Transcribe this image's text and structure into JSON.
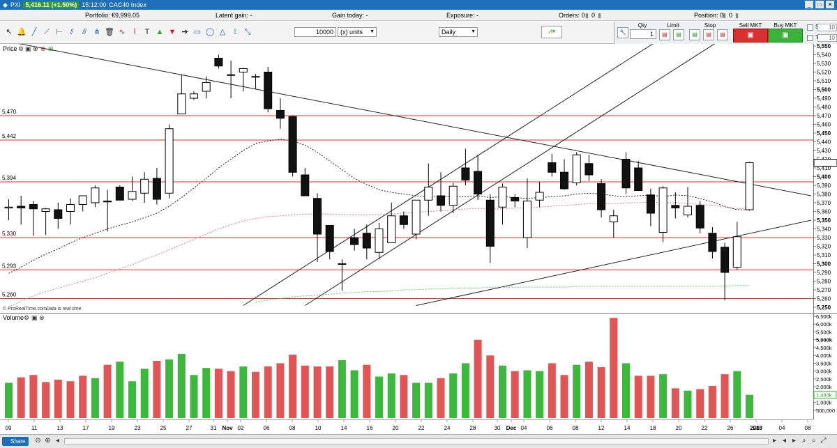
{
  "window": {
    "price_badge": "5,416.11 (+1.50%)",
    "time": "15:12:00",
    "instrument": "CAC40 Index",
    "symbol_prefix": "PXI"
  },
  "portfolio_bar": {
    "portfolio": "Portfolio: €9,999.05",
    "latent_gain": "Latent gain: -",
    "gain_today": "Gain today: -",
    "exposure": "Exposure: -",
    "orders": "Orders: 0",
    "orders2": "0",
    "position": "Position: 0",
    "position2": "0"
  },
  "toolbar": {
    "quantity": "10000",
    "units": "(x) units",
    "period": "Daily"
  },
  "order_panel": {
    "qty_label": "Qty",
    "qty_value": "1",
    "limit_label": "Limit",
    "stop_label": "Stop",
    "sell_label": "Sell MKT",
    "buy_label": "Buy MKT",
    "s_label": "S",
    "t_label": "T",
    "s_value": "10",
    "t_value": "10"
  },
  "panels": {
    "price_title": "Price",
    "volume_title": "Volume",
    "credit": "© ProRealTime.com",
    "credit2": "Data is real time"
  },
  "colors": {
    "up_volume": "#3cb83c",
    "down_volume": "#e05555",
    "hline": "#e03030",
    "bg": "#ffffff"
  },
  "chart_data": [
    {
      "type": "candlestick",
      "title": "CAC40 Index",
      "timeframe": "Daily",
      "ylim": [
        5250,
        5550
      ],
      "y_ticks": [
        "5,250",
        "5,260",
        "5,270",
        "5,280",
        "5,290",
        "5,300",
        "5,310",
        "5,320",
        "5,330",
        "5,340",
        "5,350",
        "5,360",
        "5,370",
        "5,380",
        "5,390",
        "5,400",
        "5,410",
        "5,420",
        "5,430",
        "5,440",
        "5,450",
        "5,460",
        "5,470",
        "5,480",
        "5,490",
        "5,500",
        "5,510",
        "5,520",
        "5,530",
        "5,540",
        "5,550"
      ],
      "horizontal_levels": [
        {
          "label": "5,470",
          "value": 5470
        },
        {
          "label": "5,442",
          "value": 5442
        },
        {
          "label": "5,394",
          "value": 5394
        },
        {
          "label": "5,330",
          "value": 5330
        },
        {
          "label": "5,293",
          "value": 5293
        },
        {
          "label": "5,260",
          "value": 5260
        }
      ],
      "x_labels": [
        "09",
        "11",
        "13",
        "17",
        "19",
        "23",
        "25",
        "27",
        "31",
        "Nov",
        "02",
        "06",
        "08",
        "10",
        "14",
        "16",
        "20",
        "22",
        "24",
        "28",
        "30",
        "Dec",
        "04",
        "06",
        "08",
        "12",
        "14",
        "18",
        "20",
        "22",
        "26",
        "28",
        "2018",
        "04",
        "08"
      ],
      "candles": [
        {
          "o": 5364,
          "h": 5374,
          "l": 5350,
          "c": 5365
        },
        {
          "o": 5366,
          "h": 5378,
          "l": 5345,
          "c": 5364
        },
        {
          "o": 5368,
          "h": 5372,
          "l": 5332,
          "c": 5363
        },
        {
          "o": 5360,
          "h": 5364,
          "l": 5333,
          "c": 5363
        },
        {
          "o": 5362,
          "h": 5370,
          "l": 5340,
          "c": 5352
        },
        {
          "o": 5360,
          "h": 5375,
          "l": 5345,
          "c": 5368
        },
        {
          "o": 5368,
          "h": 5376,
          "l": 5360,
          "c": 5378
        },
        {
          "o": 5370,
          "h": 5390,
          "l": 5365,
          "c": 5387
        },
        {
          "o": 5372,
          "h": 5385,
          "l": 5337,
          "c": 5371
        },
        {
          "o": 5388,
          "h": 5390,
          "l": 5375,
          "c": 5373
        },
        {
          "o": 5374,
          "h": 5400,
          "l": 5372,
          "c": 5383
        },
        {
          "o": 5381,
          "h": 5405,
          "l": 5370,
          "c": 5397
        },
        {
          "o": 5398,
          "h": 5410,
          "l": 5368,
          "c": 5374
        },
        {
          "o": 5381,
          "h": 5460,
          "l": 5375,
          "c": 5455
        },
        {
          "o": 5472,
          "h": 5517,
          "l": 5472,
          "c": 5495
        },
        {
          "o": 5490,
          "h": 5498,
          "l": 5488,
          "c": 5495
        },
        {
          "o": 5498,
          "h": 5515,
          "l": 5490,
          "c": 5508
        },
        {
          "o": 5536,
          "h": 5540,
          "l": 5524,
          "c": 5527
        },
        {
          "o": 5517,
          "h": 5533,
          "l": 5490,
          "c": 5517
        },
        {
          "o": 5520,
          "h": 5525,
          "l": 5498,
          "c": 5524
        },
        {
          "o": 5515,
          "h": 5518,
          "l": 5500,
          "c": 5515
        },
        {
          "o": 5520,
          "h": 5526,
          "l": 5474,
          "c": 5478
        },
        {
          "o": 5476,
          "h": 5490,
          "l": 5455,
          "c": 5467
        },
        {
          "o": 5469,
          "h": 5470,
          "l": 5400,
          "c": 5405
        },
        {
          "o": 5402,
          "h": 5410,
          "l": 5380,
          "c": 5378
        },
        {
          "o": 5375,
          "h": 5381,
          "l": 5302,
          "c": 5334
        },
        {
          "o": 5344,
          "h": 5344,
          "l": 5305,
          "c": 5314
        },
        {
          "o": 5300,
          "h": 5305,
          "l": 5269,
          "c": 5300
        },
        {
          "o": 5330,
          "h": 5340,
          "l": 5315,
          "c": 5322
        },
        {
          "o": 5335,
          "h": 5345,
          "l": 5305,
          "c": 5318
        },
        {
          "o": 5313,
          "h": 5347,
          "l": 5305,
          "c": 5340
        },
        {
          "o": 5324,
          "h": 5370,
          "l": 5324,
          "c": 5355
        },
        {
          "o": 5355,
          "h": 5360,
          "l": 5340,
          "c": 5345
        },
        {
          "o": 5334,
          "h": 5370,
          "l": 5328,
          "c": 5373
        },
        {
          "o": 5373,
          "h": 5415,
          "l": 5355,
          "c": 5388
        },
        {
          "o": 5378,
          "h": 5405,
          "l": 5360,
          "c": 5367
        },
        {
          "o": 5367,
          "h": 5393,
          "l": 5358,
          "c": 5389
        },
        {
          "o": 5410,
          "h": 5432,
          "l": 5390,
          "c": 5396
        },
        {
          "o": 5406,
          "h": 5425,
          "l": 5373,
          "c": 5380
        },
        {
          "o": 5373,
          "h": 5380,
          "l": 5301,
          "c": 5320
        },
        {
          "o": 5365,
          "h": 5392,
          "l": 5345,
          "c": 5388
        },
        {
          "o": 5376,
          "h": 5380,
          "l": 5365,
          "c": 5372
        },
        {
          "o": 5330,
          "h": 5398,
          "l": 5318,
          "c": 5372
        },
        {
          "o": 5373,
          "h": 5394,
          "l": 5365,
          "c": 5382
        },
        {
          "o": 5416,
          "h": 5426,
          "l": 5400,
          "c": 5405
        },
        {
          "o": 5405,
          "h": 5420,
          "l": 5385,
          "c": 5386
        },
        {
          "o": 5393,
          "h": 5428,
          "l": 5390,
          "c": 5425
        },
        {
          "o": 5415,
          "h": 5425,
          "l": 5395,
          "c": 5402
        },
        {
          "o": 5392,
          "h": 5397,
          "l": 5353,
          "c": 5362
        },
        {
          "o": 5348,
          "h": 5362,
          "l": 5330,
          "c": 5355
        },
        {
          "o": 5420,
          "h": 5428,
          "l": 5380,
          "c": 5387
        },
        {
          "o": 5410,
          "h": 5418,
          "l": 5386,
          "c": 5384
        },
        {
          "o": 5379,
          "h": 5386,
          "l": 5343,
          "c": 5358
        },
        {
          "o": 5336,
          "h": 5389,
          "l": 5325,
          "c": 5387
        },
        {
          "o": 5367,
          "h": 5382,
          "l": 5352,
          "c": 5364
        },
        {
          "o": 5356,
          "h": 5388,
          "l": 5353,
          "c": 5366
        },
        {
          "o": 5367,
          "h": 5372,
          "l": 5335,
          "c": 5341
        },
        {
          "o": 5335,
          "h": 5342,
          "l": 5306,
          "c": 5314
        },
        {
          "o": 5319,
          "h": 5324,
          "l": 5258,
          "c": 5290
        },
        {
          "o": 5296,
          "h": 5348,
          "l": 5293,
          "c": 5331
        },
        {
          "o": 5362,
          "h": 5417,
          "l": 5361,
          "c": 5416
        }
      ],
      "moving_averages": [
        {
          "name": "MA20",
          "color": "#222222",
          "values": [
            5289,
            5296,
            5304,
            5311,
            5317,
            5324,
            5330,
            5335,
            5340,
            5344,
            5348,
            5353,
            5358,
            5366,
            5376,
            5387,
            5398,
            5410,
            5420,
            5430,
            5438,
            5441,
            5443,
            5441,
            5436,
            5428,
            5418,
            5408,
            5398,
            5391,
            5385,
            5382,
            5380,
            5378,
            5377,
            5377,
            5377,
            5377,
            5378,
            5376,
            5377,
            5376,
            5375,
            5376,
            5377,
            5378,
            5380,
            5381,
            5380,
            5378,
            5377,
            5378,
            5379,
            5377,
            5379,
            5378,
            5375,
            5371,
            5366,
            5362,
            5362
          ]
        },
        {
          "name": "MA50",
          "color": "#e07a7a",
          "values": [
            5250,
            5257,
            5263,
            5268,
            5272,
            5276,
            5280,
            5284,
            5289,
            5294,
            5299,
            5305,
            5310,
            5316,
            5322,
            5328,
            5334,
            5340,
            5345,
            5349,
            5352,
            5354,
            5355,
            5356,
            5357,
            5357,
            5357,
            5356,
            5356,
            5356,
            5356,
            5357,
            5358,
            5359,
            5360,
            5361,
            5362,
            5363,
            5363,
            5363,
            5363,
            5364,
            5364,
            5365,
            5366,
            5367,
            5368,
            5369,
            5369,
            5369,
            5370,
            5370,
            5371,
            5370,
            5370,
            5369,
            5368,
            5367,
            5365,
            5363,
            5364
          ]
        },
        {
          "name": "MA200",
          "color": "#5ccb5c",
          "values": [
            null,
            null,
            null,
            null,
            null,
            null,
            null,
            null,
            null,
            null,
            null,
            null,
            null,
            null,
            null,
            null,
            null,
            null,
            null,
            null,
            5256,
            5258,
            5260,
            5262,
            5263,
            5264,
            5265,
            5266,
            5267,
            5268,
            5268,
            5269,
            5270,
            5270,
            5271,
            5271,
            5272,
            5272,
            5272,
            5273,
            5273,
            5273,
            5273,
            5273,
            5273,
            5273,
            5274,
            5274,
            5274,
            5274,
            5274,
            5274,
            5274,
            5274,
            5274,
            5274,
            5274,
            5274,
            5274,
            5275,
            5275
          ]
        }
      ],
      "trend_lines": [
        {
          "points": [
            [
              0,
              5555
            ],
            [
              65,
              5378
            ]
          ]
        },
        {
          "points": [
            [
              19,
              5252
            ],
            [
              53,
              5560
            ]
          ]
        },
        {
          "points": [
            [
              24,
              5252
            ],
            [
              58,
              5560
            ]
          ]
        },
        {
          "points": [
            [
              33,
              5252
            ],
            [
              65,
              5350
            ]
          ]
        }
      ]
    },
    {
      "type": "bar",
      "title": "Volume",
      "ylim": [
        0,
        6500000
      ],
      "y_ticks": [
        "500,000",
        "1,000k",
        "1,500k",
        "2,000k",
        "2,500k",
        "3,000k",
        "3,500k",
        "4,000k",
        "4,500k",
        "5,000k",
        "5,500k",
        "6,000k",
        "6,500k"
      ],
      "last_value_label": "1,483k",
      "values": [
        2250000,
        2600000,
        2750000,
        2300000,
        2450000,
        2350000,
        2700000,
        2550000,
        3400000,
        3600000,
        2350000,
        3150000,
        3650000,
        3750000,
        4100000,
        2750000,
        3200000,
        3150000,
        3000000,
        3300000,
        2950000,
        3300000,
        3500000,
        4050000,
        3350000,
        3300000,
        3300000,
        3700000,
        3050000,
        3400000,
        2650000,
        2850000,
        2750000,
        2250000,
        2250000,
        2550000,
        2850000,
        3500000,
        5000000,
        4000000,
        3350000,
        3000000,
        3050000,
        3000000,
        3500000,
        2750000,
        3400000,
        3600000,
        3250000,
        6400000,
        3500000,
        2700000,
        2700000,
        2800000,
        1900000,
        1750000,
        1850000,
        2050000,
        2800000,
        3000000,
        1483000
      ],
      "up": [
        1,
        0,
        0,
        0,
        0,
        0,
        0,
        1,
        0,
        1,
        1,
        1,
        0,
        1,
        1,
        1,
        1,
        0,
        0,
        1,
        0,
        0,
        0,
        0,
        0,
        0,
        0,
        1,
        1,
        0,
        1,
        1,
        0,
        1,
        1,
        0,
        1,
        1,
        0,
        0,
        1,
        0,
        1,
        1,
        0,
        0,
        1,
        0,
        0,
        0,
        1,
        0,
        0,
        1,
        0,
        1,
        0,
        0,
        0,
        1,
        1
      ]
    }
  ]
}
